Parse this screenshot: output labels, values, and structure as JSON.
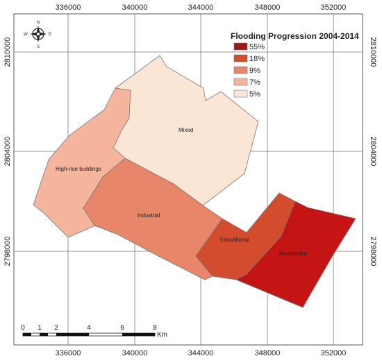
{
  "legend": {
    "title": "Flooding Progression 2004-2014",
    "items": [
      {
        "label": "55%",
        "color": "#a01818"
      },
      {
        "label": "18%",
        "color": "#d34c2e"
      },
      {
        "label": "9%",
        "color": "#e8866a"
      },
      {
        "label": "7%",
        "color": "#f4b59c"
      },
      {
        "label": "5%",
        "color": "#fbe5d4"
      }
    ]
  },
  "axes": {
    "x_ticks": [
      "336000",
      "340000",
      "344000",
      "348000",
      "352000"
    ],
    "y_ticks": [
      "2810000",
      "2804000",
      "2798000"
    ]
  },
  "regions": [
    {
      "label": "Mixed",
      "value": "5%",
      "color": "#fbe5d4"
    },
    {
      "label": "High-rise buildings",
      "value": "7%",
      "color": "#f4b59c"
    },
    {
      "label": "Industrial",
      "value": "9%",
      "color": "#e8866a"
    },
    {
      "label": "Educational",
      "value": "18%",
      "color": "#d34c2e"
    },
    {
      "label": "Residential",
      "value": "55%",
      "color": "#c41414"
    }
  ],
  "scale": {
    "ticks": [
      "0",
      "1",
      "2",
      "4",
      "6",
      "8"
    ],
    "unit": "Km"
  },
  "compass": {
    "n": "N",
    "s": "S",
    "e": "E",
    "w": "W"
  }
}
